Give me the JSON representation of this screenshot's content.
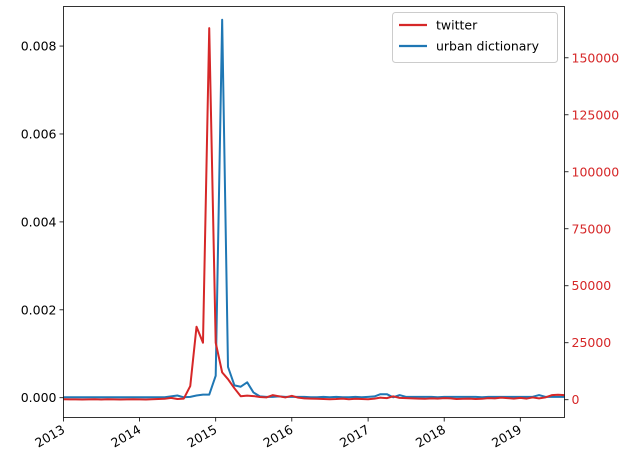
{
  "chart_data": {
    "type": "line",
    "title": "",
    "xlabel": "",
    "ylabel_left": "",
    "ylabel_right": "",
    "x_tick_labels": [
      "2013",
      "2014",
      "2015",
      "2016",
      "2017",
      "2018",
      "2019"
    ],
    "x_range": [
      "2013-01-01",
      "2019-08-01"
    ],
    "y_left_range": [
      -0.00045,
      0.0089
    ],
    "y_left_ticks": [
      0.0,
      0.002,
      0.004,
      0.006,
      0.008
    ],
    "y_left_tick_labels": [
      "0.000",
      "0.002",
      "0.004",
      "0.006",
      "0.008"
    ],
    "y_right_range": [
      -7800,
      172500
    ],
    "y_right_ticks": [
      0,
      25000,
      50000,
      75000,
      100000,
      125000,
      150000
    ],
    "y_right_tick_labels": [
      "0",
      "25000",
      "50000",
      "75000",
      "100000",
      "125000",
      "150000"
    ],
    "grid": false,
    "legend_position": "top-right",
    "colors": {
      "twitter": "#d62728",
      "urban_dictionary": "#1f77b4",
      "right_axis": "#d62728"
    },
    "series": [
      {
        "name": "twitter",
        "axis": "right",
        "x": [
          "2013-01-01",
          "2013-02-01",
          "2013-03-01",
          "2013-04-01",
          "2013-05-01",
          "2013-06-01",
          "2013-07-01",
          "2013-08-01",
          "2013-09-01",
          "2013-10-01",
          "2013-11-01",
          "2013-12-01",
          "2014-01-01",
          "2014-02-01",
          "2014-03-01",
          "2014-04-01",
          "2014-05-01",
          "2014-06-01",
          "2014-07-01",
          "2014-08-01",
          "2014-09-01",
          "2014-10-01",
          "2014-11-01",
          "2014-12-01",
          "2015-01-01",
          "2015-02-01",
          "2015-03-01",
          "2015-04-01",
          "2015-05-01",
          "2015-06-01",
          "2015-07-01",
          "2015-08-01",
          "2015-09-01",
          "2015-10-01",
          "2015-11-01",
          "2015-12-01",
          "2016-01-01",
          "2016-02-01",
          "2016-03-01",
          "2016-04-01",
          "2016-05-01",
          "2016-06-01",
          "2016-07-01",
          "2016-08-01",
          "2016-09-01",
          "2016-10-01",
          "2016-11-01",
          "2016-12-01",
          "2017-01-01",
          "2017-02-01",
          "2017-03-01",
          "2017-04-01",
          "2017-05-01",
          "2017-06-01",
          "2017-07-01",
          "2017-08-01",
          "2017-09-01",
          "2017-10-01",
          "2017-11-01",
          "2017-12-01",
          "2018-01-01",
          "2018-02-01",
          "2018-03-01",
          "2018-04-01",
          "2018-05-01",
          "2018-06-01",
          "2018-07-01",
          "2018-08-01",
          "2018-09-01",
          "2018-10-01",
          "2018-11-01",
          "2018-12-01",
          "2019-01-01",
          "2019-02-01",
          "2019-03-01",
          "2019-04-01",
          "2019-05-01",
          "2019-06-01",
          "2019-07-01",
          "2019-08-01"
        ],
        "values": [
          200,
          150,
          150,
          100,
          150,
          200,
          100,
          200,
          150,
          100,
          150,
          200,
          150,
          100,
          200,
          300,
          400,
          800,
          300,
          500,
          6000,
          32000,
          25000,
          163000,
          25000,
          12000,
          9000,
          5000,
          1500,
          1800,
          1600,
          1200,
          1000,
          2000,
          1500,
          1000,
          1700,
          900,
          600,
          500,
          400,
          300,
          200,
          300,
          500,
          200,
          400,
          300,
          200,
          500,
          900,
          700,
          1500,
          800,
          700,
          600,
          500,
          400,
          600,
          500,
          700,
          600,
          300,
          400,
          500,
          300,
          400,
          700,
          600,
          900,
          700,
          500,
          800,
          500,
          1000,
          600,
          1000,
          2000,
          2200,
          2000
        ]
      },
      {
        "name": "urban dictionary",
        "axis": "left",
        "x": [
          "2013-01-01",
          "2013-02-01",
          "2013-03-01",
          "2013-04-01",
          "2013-05-01",
          "2013-06-01",
          "2013-07-01",
          "2013-08-01",
          "2013-09-01",
          "2013-10-01",
          "2013-11-01",
          "2013-12-01",
          "2014-01-01",
          "2014-02-01",
          "2014-03-01",
          "2014-04-01",
          "2014-05-01",
          "2014-06-01",
          "2014-07-01",
          "2014-08-01",
          "2014-09-01",
          "2014-10-01",
          "2014-11-01",
          "2014-12-01",
          "2015-01-01",
          "2015-02-01",
          "2015-03-01",
          "2015-04-01",
          "2015-05-01",
          "2015-06-01",
          "2015-07-01",
          "2015-08-01",
          "2015-09-01",
          "2015-10-01",
          "2015-11-01",
          "2015-12-01",
          "2016-01-01",
          "2016-02-01",
          "2016-03-01",
          "2016-04-01",
          "2016-05-01",
          "2016-06-01",
          "2016-07-01",
          "2016-08-01",
          "2016-09-01",
          "2016-10-01",
          "2016-11-01",
          "2016-12-01",
          "2017-01-01",
          "2017-02-01",
          "2017-03-01",
          "2017-04-01",
          "2017-05-01",
          "2017-06-01",
          "2017-07-01",
          "2017-08-01",
          "2017-09-01",
          "2017-10-01",
          "2017-11-01",
          "2017-12-01",
          "2018-01-01",
          "2018-02-01",
          "2018-03-01",
          "2018-04-01",
          "2018-05-01",
          "2018-06-01",
          "2018-07-01",
          "2018-08-01",
          "2018-09-01",
          "2018-10-01",
          "2018-11-01",
          "2018-12-01",
          "2019-01-01",
          "2019-02-01",
          "2019-03-01",
          "2019-04-01",
          "2019-05-01",
          "2019-06-01",
          "2019-07-01",
          "2019-08-01"
        ],
        "values": [
          1e-05,
          1e-05,
          1e-05,
          1e-05,
          1e-05,
          1e-05,
          1e-05,
          1e-05,
          1e-05,
          1e-05,
          1e-05,
          1e-05,
          1e-05,
          1e-05,
          1e-05,
          1e-05,
          1e-05,
          3e-05,
          5e-05,
          1e-05,
          2e-05,
          5e-05,
          7e-05,
          7e-05,
          0.0005,
          0.0086,
          0.0007,
          0.00028,
          0.00025,
          0.00035,
          0.00012,
          3e-05,
          2e-05,
          2e-05,
          3e-05,
          2e-05,
          2e-05,
          2e-05,
          2e-05,
          1e-05,
          1e-05,
          2e-05,
          1e-05,
          2e-05,
          1e-05,
          1e-05,
          2e-05,
          1e-05,
          2e-05,
          3e-05,
          8e-05,
          8e-05,
          1e-05,
          6e-05,
          2e-05,
          2e-05,
          2e-05,
          2e-05,
          2e-05,
          1e-05,
          2e-05,
          2e-05,
          2e-05,
          2e-05,
          2e-05,
          2e-05,
          1e-05,
          2e-05,
          2e-05,
          2e-05,
          2e-05,
          2e-05,
          2e-05,
          2e-05,
          2e-05,
          6e-05,
          2e-05,
          2e-05,
          2e-05,
          2e-05
        ]
      }
    ]
  }
}
